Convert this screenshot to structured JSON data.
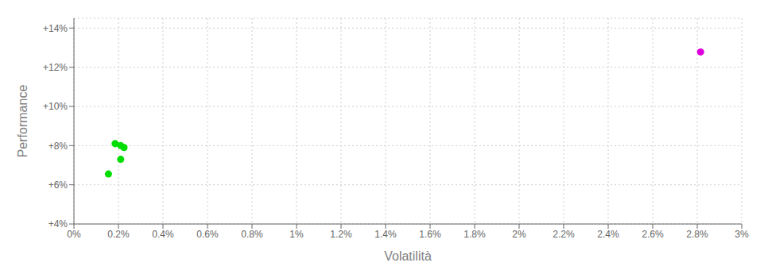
{
  "chart_data": {
    "type": "scatter",
    "xlabel": "Volatilità",
    "ylabel": "Performance",
    "xlim": [
      0.0,
      0.03
    ],
    "ylim": [
      0.04,
      0.145
    ],
    "xticks": [
      {
        "value": 0.0,
        "label": "0%"
      },
      {
        "value": 0.002,
        "label": "0.2%"
      },
      {
        "value": 0.004,
        "label": "0.4%"
      },
      {
        "value": 0.006,
        "label": "0.6%"
      },
      {
        "value": 0.008,
        "label": "0.8%"
      },
      {
        "value": 0.01,
        "label": "1%"
      },
      {
        "value": 0.012,
        "label": "1.2%"
      },
      {
        "value": 0.014,
        "label": "1.4%"
      },
      {
        "value": 0.016,
        "label": "1.6%"
      },
      {
        "value": 0.018,
        "label": "1.8%"
      },
      {
        "value": 0.02,
        "label": "2%"
      },
      {
        "value": 0.022,
        "label": "2.2%"
      },
      {
        "value": 0.024,
        "label": "2.4%"
      },
      {
        "value": 0.026,
        "label": "2.6%"
      },
      {
        "value": 0.028,
        "label": "2.8%"
      },
      {
        "value": 0.03,
        "label": "3%"
      }
    ],
    "yticks": [
      {
        "value": 0.04,
        "label": "+4%"
      },
      {
        "value": 0.06,
        "label": "+6%"
      },
      {
        "value": 0.08,
        "label": "+8%"
      },
      {
        "value": 0.1,
        "label": "+10%"
      },
      {
        "value": 0.12,
        "label": "+12%"
      },
      {
        "value": 0.14,
        "label": "+14%"
      }
    ],
    "grid": true,
    "series": [
      {
        "color": "#00dd00",
        "x": [
          0.00185,
          0.0021,
          0.00225,
          0.0021,
          0.00155
        ],
        "values": [
          0.081,
          0.08,
          0.079,
          0.073,
          0.0655
        ]
      },
      {
        "color": "#dd00dd",
        "x": [
          0.02815
        ],
        "values": [
          0.1278
        ]
      }
    ]
  }
}
